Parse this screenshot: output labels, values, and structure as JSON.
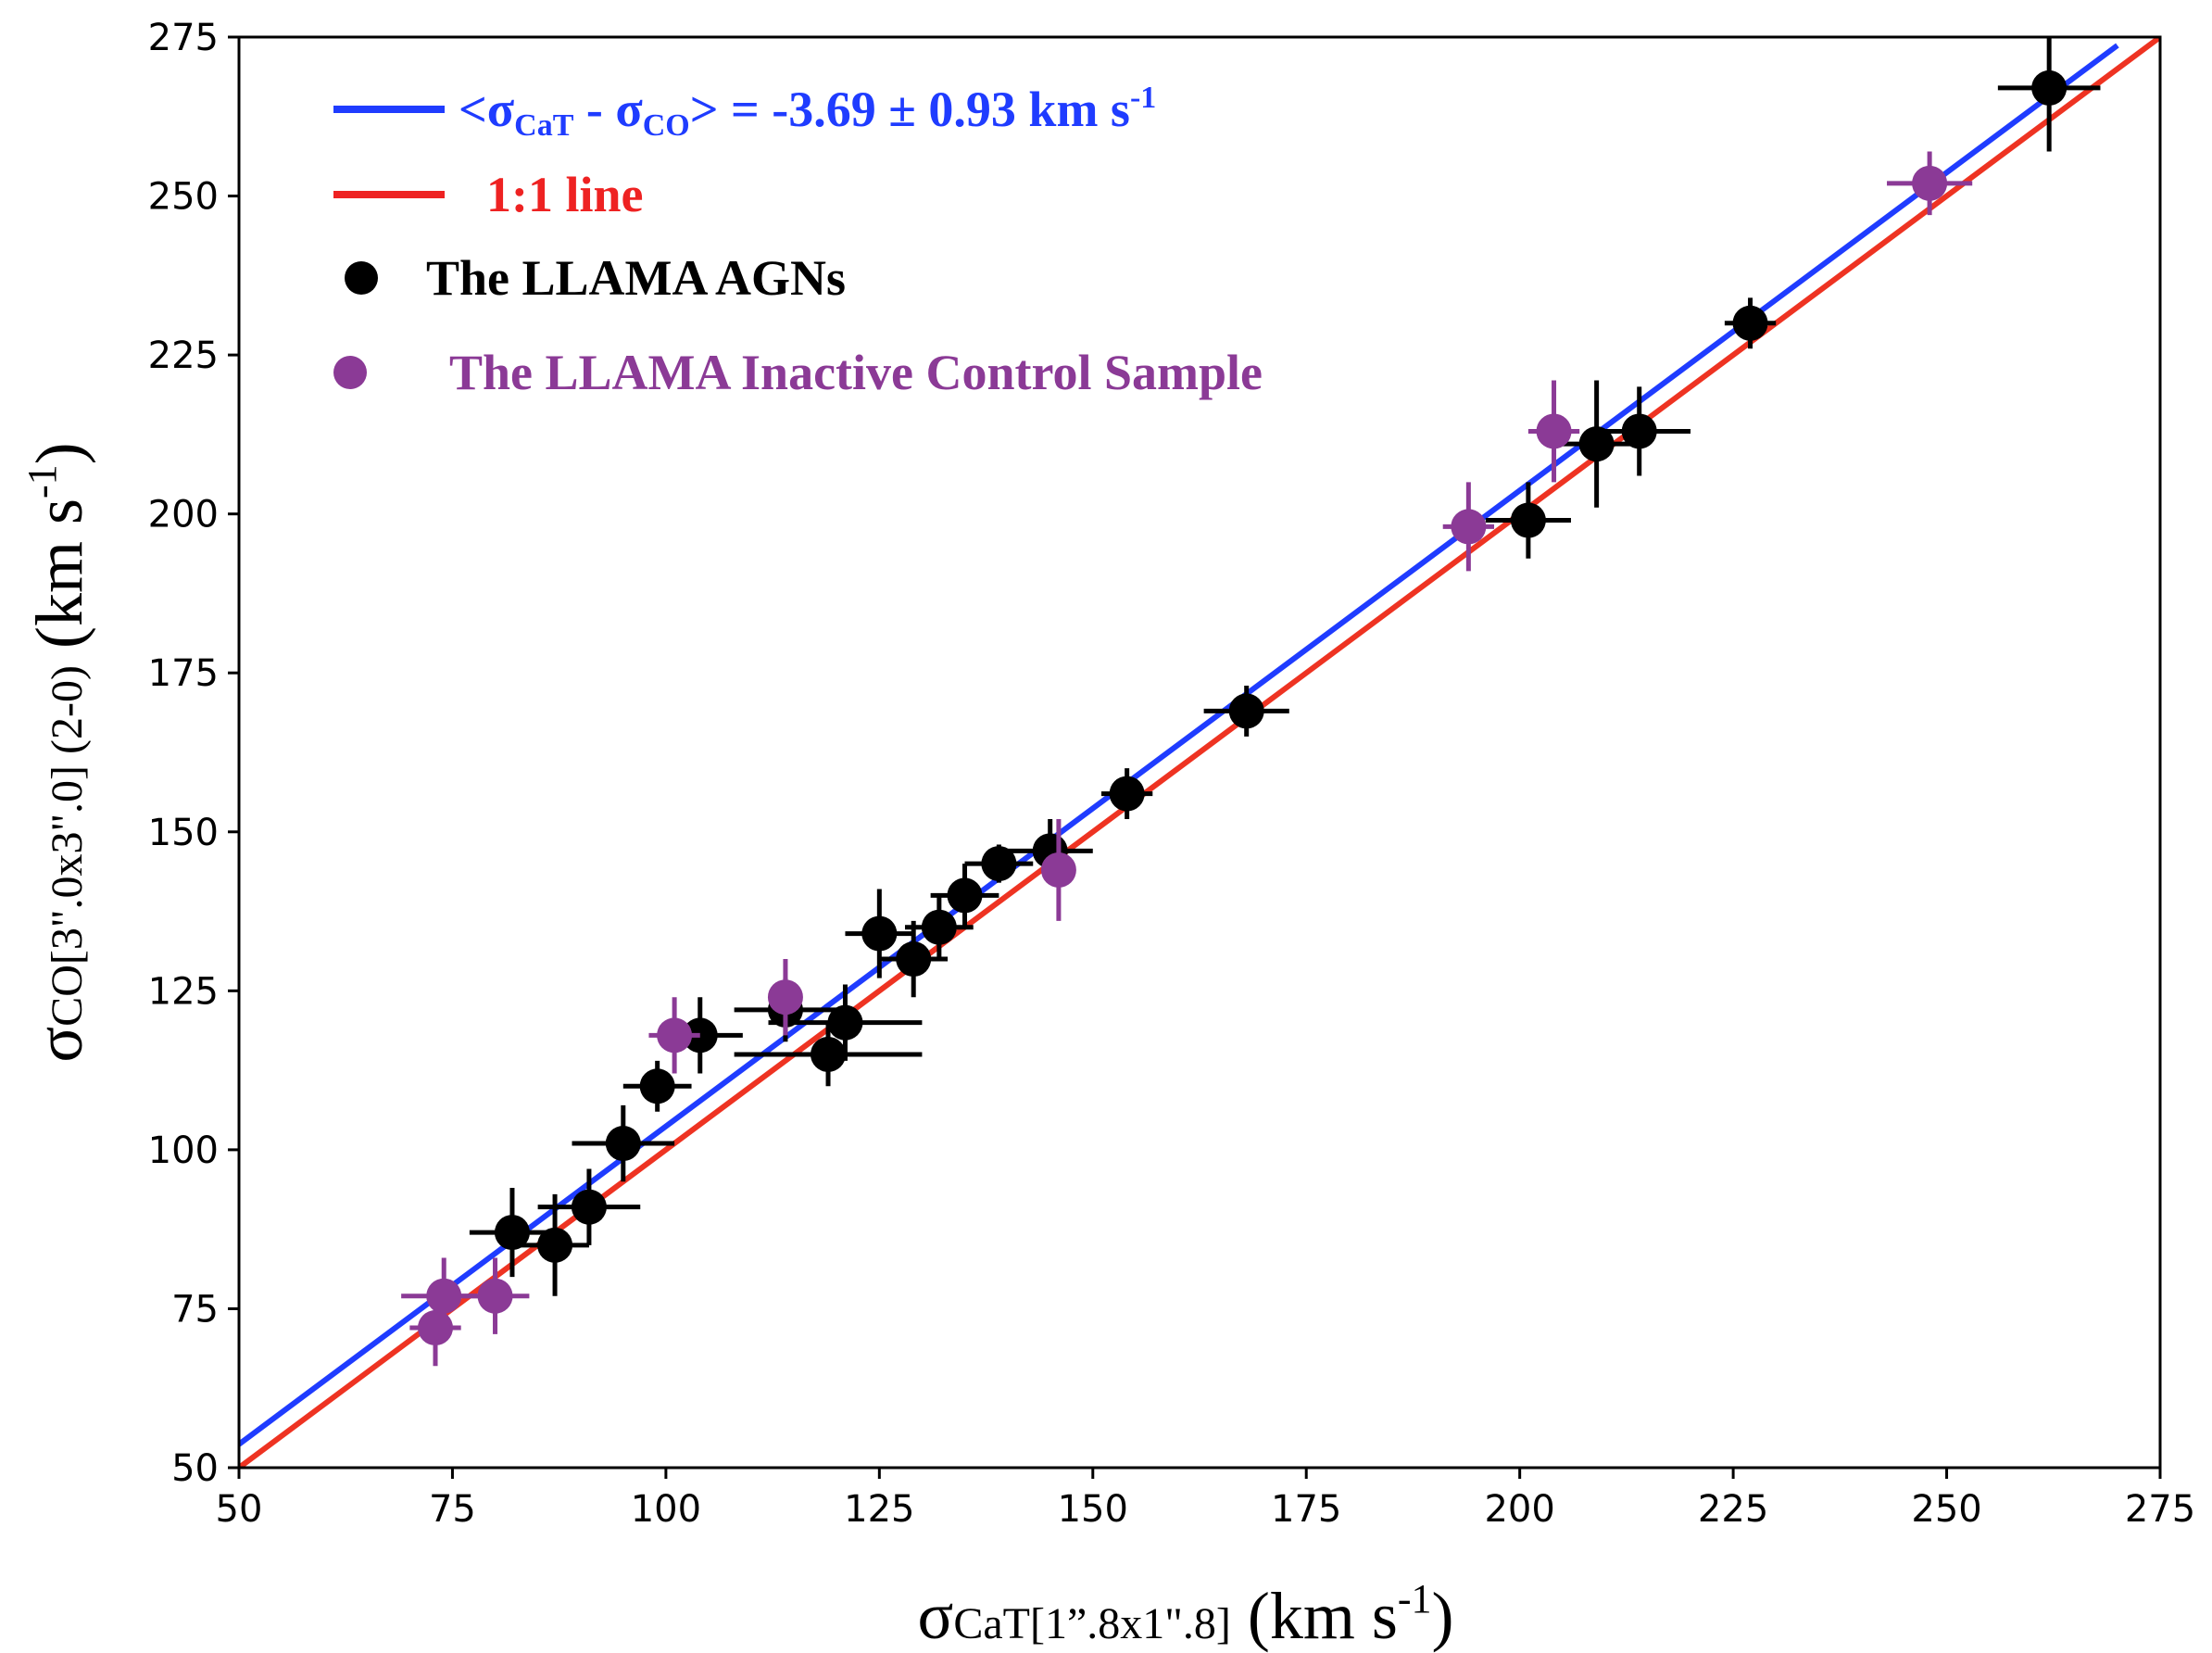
{
  "chart_data": {
    "type": "scatter",
    "title": "",
    "x_axis": {
      "symbol": "σ",
      "subscript": "CaT[1”.8x1\".8]",
      "unit_open": " (km s",
      "unit_sup": "-1",
      "unit_close": ")",
      "range": [
        50,
        275
      ],
      "ticks": [
        50,
        75,
        100,
        125,
        150,
        175,
        200,
        225,
        250,
        275
      ]
    },
    "y_axis": {
      "symbol": "σ",
      "subscript": "CO[3\".0x3\".0] (2-0)",
      "unit_open": " (km s",
      "unit_sup": "-1",
      "unit_close": ")",
      "range": [
        50,
        275
      ],
      "ticks": [
        50,
        75,
        100,
        125,
        150,
        175,
        200,
        225,
        250,
        275
      ]
    },
    "lines": [
      {
        "name": "fit",
        "color": "#1f3cff",
        "slope": 1,
        "intercept": 3.69,
        "x_range": [
          50,
          270
        ]
      },
      {
        "name": "one_to_one",
        "color": "#ee3322",
        "slope": 1,
        "intercept": 0,
        "x_range": [
          50,
          275
        ]
      }
    ],
    "legend": {
      "placement": "top-left",
      "fit": {
        "text_open": "<σ",
        "sub1": "CaT",
        "text_mid": " - σ",
        "sub2": "CO",
        "text_close": "> = -3.69 ± 0.93 km s",
        "sup": "-1",
        "color": "#1f3cff"
      },
      "one_to_one": {
        "text": "1:1 line",
        "color": "#ee2222"
      },
      "agn": {
        "text": "The LLAMA AGNs",
        "color": "#000000"
      },
      "inactive": {
        "text": "The LLAMA Inactive Control Sample",
        "color": "#8b3a96"
      }
    },
    "series": [
      {
        "name": "The LLAMA AGNs",
        "color": "#000000",
        "points": [
          {
            "x": 82,
            "y": 87,
            "xerr": 5,
            "yerr": 7
          },
          {
            "x": 87,
            "y": 85,
            "xerr": 4,
            "yerr": 8
          },
          {
            "x": 91,
            "y": 91,
            "xerr": 6,
            "yerr": 6
          },
          {
            "x": 95,
            "y": 101,
            "xerr": 6,
            "yerr": 6
          },
          {
            "x": 99,
            "y": 110,
            "xerr": 4,
            "yerr": 4
          },
          {
            "x": 104,
            "y": 118,
            "xerr": 5,
            "yerr": 6
          },
          {
            "x": 114,
            "y": 122,
            "xerr": 6,
            "yerr": 5
          },
          {
            "x": 119,
            "y": 115,
            "xerr": 11,
            "yerr": 5
          },
          {
            "x": 121,
            "y": 120,
            "xerr": 9,
            "yerr": 6
          },
          {
            "x": 125,
            "y": 134,
            "xerr": 4,
            "yerr": 7
          },
          {
            "x": 129,
            "y": 130,
            "xerr": 4,
            "yerr": 6
          },
          {
            "x": 132,
            "y": 135,
            "xerr": 4,
            "yerr": 5
          },
          {
            "x": 135,
            "y": 140,
            "xerr": 4,
            "yerr": 5
          },
          {
            "x": 139,
            "y": 145,
            "xerr": 4,
            "yerr": 3
          },
          {
            "x": 145,
            "y": 147,
            "xerr": 5,
            "yerr": 5
          },
          {
            "x": 154,
            "y": 156,
            "xerr": 3,
            "yerr": 4
          },
          {
            "x": 168,
            "y": 169,
            "xerr": 5,
            "yerr": 4
          },
          {
            "x": 201,
            "y": 199,
            "xerr": 5,
            "yerr": 6
          },
          {
            "x": 209,
            "y": 211,
            "xerr": 6,
            "yerr": 10
          },
          {
            "x": 214,
            "y": 213,
            "xerr": 6,
            "yerr": 7
          },
          {
            "x": 227,
            "y": 230,
            "xerr": 3,
            "yerr": 4
          },
          {
            "x": 262,
            "y": 267,
            "xerr": 6,
            "yerr": 10
          }
        ]
      },
      {
        "name": "The LLAMA Inactive Control Sample",
        "color": "#8b3a96",
        "points": [
          {
            "x": 73,
            "y": 72,
            "xerr": 3,
            "yerr": 6
          },
          {
            "x": 74,
            "y": 77,
            "xerr": 5,
            "yerr": 6
          },
          {
            "x": 80,
            "y": 77,
            "xerr": 4,
            "yerr": 6
          },
          {
            "x": 101,
            "y": 118,
            "xerr": 3,
            "yerr": 6
          },
          {
            "x": 114,
            "y": 124,
            "xerr": 2,
            "yerr": 6
          },
          {
            "x": 146,
            "y": 144,
            "xerr": 2,
            "yerr": 8
          },
          {
            "x": 194,
            "y": 198,
            "xerr": 3,
            "yerr": 7
          },
          {
            "x": 204,
            "y": 213,
            "xerr": 3,
            "yerr": 8
          },
          {
            "x": 248,
            "y": 252,
            "xerr": 5,
            "yerr": 5
          }
        ]
      }
    ]
  }
}
